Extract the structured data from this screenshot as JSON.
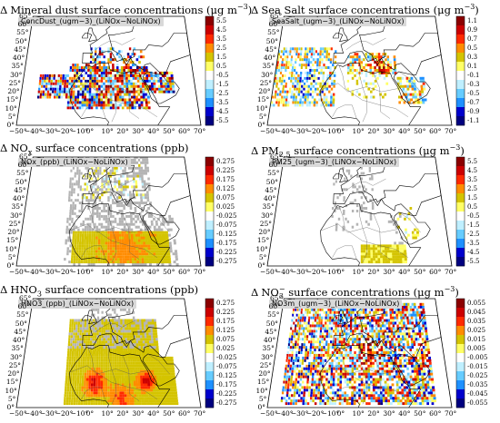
{
  "panels": [
    {
      "title_main": "Mineral dust surface concentrations (μg m",
      "title_sup": "−3",
      "title_end": ")",
      "var_label": "ConcDust_(ugm−3)_(LiNOx−NoLiNOx)",
      "cbar_ticks": [
        "5.5",
        "4.5",
        "3.5",
        "2.5",
        "1.5",
        "0.5",
        "-0.5",
        "-1.5",
        "-2.5",
        "-3.5",
        "-4.5",
        "-5.5"
      ]
    },
    {
      "title_main": "Sea Salt surface concentrations (μg m",
      "title_sup": "−3",
      "title_end": ")",
      "var_label": "SeaSalt_(ugm−3)_(LiNOx−NoLiNOx)",
      "cbar_ticks": [
        "1.1",
        "0.9",
        "0.7",
        "0.5",
        "0.3",
        "0.1",
        "-0.1",
        "-0.3",
        "-0.5",
        "-0.7",
        "-0.9",
        "-1.1"
      ]
    },
    {
      "title_pre": "NO",
      "title_sub": "x",
      "title_main": " surface concentrations (ppb)",
      "var_label": "NOx_(ppb)_(LiNOx−NoLiNOx)",
      "cbar_ticks": [
        "0.275",
        "0.225",
        "0.175",
        "0.125",
        "0.075",
        "0.025",
        "-0.025",
        "-0.075",
        "-0.125",
        "-0.175",
        "-0.225",
        "-0.275"
      ]
    },
    {
      "title_pre": "PM",
      "title_sub": "2.5",
      "title_main": " surface concentrations (μg m",
      "title_sup": "−3",
      "title_end": ")",
      "var_label": "PM25_(ugm−3)_(LiNOx−NoLiNOx)",
      "cbar_ticks": [
        "5.5",
        "4.5",
        "3.5",
        "2.5",
        "1.5",
        "0.5",
        "-0.5",
        "-1.5",
        "-2.5",
        "-3.5",
        "-4.5",
        "-5.5"
      ]
    },
    {
      "title_pre": "HNO",
      "title_sub": "3",
      "title_main": " surface concentrations (ppb)",
      "var_label": "HNO3_(ppb)_(LiNOx−NoLiNOx)",
      "cbar_ticks": [
        "0.275",
        "0.225",
        "0.175",
        "0.125",
        "0.075",
        "0.025",
        "-0.025",
        "-0.075",
        "-0.125",
        "-0.175",
        "-0.225",
        "-0.275"
      ]
    },
    {
      "title_pre": "NO",
      "title_sub": "3",
      "title_sup_pre": "−",
      "title_main": " surface concentrations (μg m",
      "title_sup": "−3",
      "title_end": ")",
      "var_label": "NO3m_(ugm−3)_(LiNOx−NoLiNOx)",
      "cbar_ticks": [
        "0.055",
        "0.045",
        "0.035",
        "0.025",
        "0.015",
        "0.005",
        "-0.005",
        "-0.015",
        "-0.025",
        "-0.035",
        "-0.045",
        "-0.055"
      ]
    }
  ],
  "delta_symbol": "Δ",
  "lat_ticks": [
    "65°",
    "60°",
    "55°",
    "50°",
    "45°",
    "40°",
    "35°",
    "30°",
    "25°",
    "20°",
    "15°",
    "10°",
    "5°",
    "0°"
  ],
  "lon_ticks": [
    "−50°",
    "−40°",
    "−30°",
    "−20°",
    "−10°",
    "0°",
    "10°",
    "20°",
    "30°",
    "40°",
    "50°",
    "60°",
    "70°"
  ],
  "colorbar_colors": [
    "#8b0000",
    "#cc0000",
    "#ff2a00",
    "#ff8c00",
    "#d4c400",
    "#ffff66",
    "#ffffff",
    "#bfefff",
    "#66ccff",
    "#1e90ff",
    "#0000cd",
    "#000080"
  ],
  "land_color": "#ffffff",
  "mask_color": "#b4b4b4"
}
